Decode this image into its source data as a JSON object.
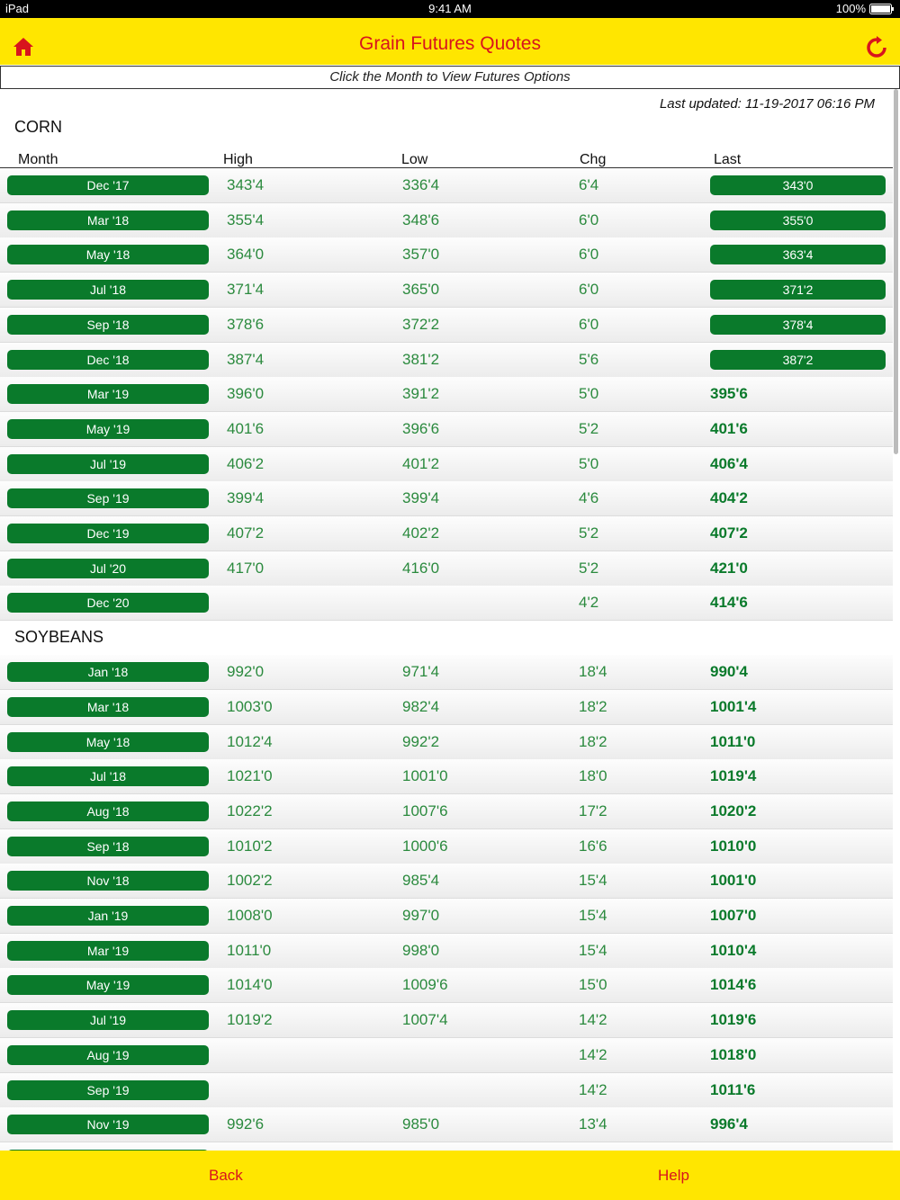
{
  "status": {
    "device": "iPad",
    "time": "9:41 AM",
    "battery": "100%"
  },
  "header": {
    "title": "Grain Futures Quotes"
  },
  "subheader": "Click the Month to View Futures Options",
  "last_updated": "Last updated: 11-19-2017 06:16 PM",
  "columns": [
    "Month",
    "High",
    "Low",
    "Chg",
    "Last"
  ],
  "sections": [
    {
      "name": "CORN",
      "rows": [
        {
          "month": "Dec '17",
          "high": "343'4",
          "low": "336'4",
          "chg": "6'4",
          "last": "343'0",
          "last_button": true
        },
        {
          "month": "Mar '18",
          "high": "355'4",
          "low": "348'6",
          "chg": "6'0",
          "last": "355'0",
          "last_button": true
        },
        {
          "month": "May '18",
          "high": "364'0",
          "low": "357'0",
          "chg": "6'0",
          "last": "363'4",
          "last_button": true
        },
        {
          "month": "Jul '18",
          "high": "371'4",
          "low": "365'0",
          "chg": "6'0",
          "last": "371'2",
          "last_button": true
        },
        {
          "month": "Sep '18",
          "high": "378'6",
          "low": "372'2",
          "chg": "6'0",
          "last": "378'4",
          "last_button": true
        },
        {
          "month": "Dec '18",
          "high": "387'4",
          "low": "381'2",
          "chg": "5'6",
          "last": "387'2",
          "last_button": true
        },
        {
          "month": "Mar '19",
          "high": "396'0",
          "low": "391'2",
          "chg": "5'0",
          "last": "395'6",
          "last_button": false
        },
        {
          "month": "May '19",
          "high": "401'6",
          "low": "396'6",
          "chg": "5'2",
          "last": "401'6",
          "last_button": false
        },
        {
          "month": "Jul '19",
          "high": "406'2",
          "low": "401'2",
          "chg": "5'0",
          "last": "406'4",
          "last_button": false
        },
        {
          "month": "Sep '19",
          "high": "399'4",
          "low": "399'4",
          "chg": "4'6",
          "last": "404'2",
          "last_button": false
        },
        {
          "month": "Dec '19",
          "high": "407'2",
          "low": "402'2",
          "chg": "5'2",
          "last": "407'2",
          "last_button": false
        },
        {
          "month": "Jul '20",
          "high": "417'0",
          "low": "416'0",
          "chg": "5'2",
          "last": "421'0",
          "last_button": false
        },
        {
          "month": "Dec '20",
          "high": null,
          "low": null,
          "chg": "4'2",
          "last": "414'6",
          "last_button": false
        }
      ]
    },
    {
      "name": "SOYBEANS",
      "rows": [
        {
          "month": "Jan '18",
          "high": "992'0",
          "low": "971'4",
          "chg": "18'4",
          "last": "990'4",
          "last_button": false
        },
        {
          "month": "Mar '18",
          "high": "1003'0",
          "low": "982'4",
          "chg": "18'2",
          "last": "1001'4",
          "last_button": false
        },
        {
          "month": "May '18",
          "high": "1012'4",
          "low": "992'2",
          "chg": "18'2",
          "last": "1011'0",
          "last_button": false
        },
        {
          "month": "Jul '18",
          "high": "1021'0",
          "low": "1001'0",
          "chg": "18'0",
          "last": "1019'4",
          "last_button": false
        },
        {
          "month": "Aug '18",
          "high": "1022'2",
          "low": "1007'6",
          "chg": "17'2",
          "last": "1020'2",
          "last_button": false
        },
        {
          "month": "Sep '18",
          "high": "1010'2",
          "low": "1000'6",
          "chg": "16'6",
          "last": "1010'0",
          "last_button": false
        },
        {
          "month": "Nov '18",
          "high": "1002'2",
          "low": "985'4",
          "chg": "15'4",
          "last": "1001'0",
          "last_button": false
        },
        {
          "month": "Jan '19",
          "high": "1008'0",
          "low": "997'0",
          "chg": "15'4",
          "last": "1007'0",
          "last_button": false
        },
        {
          "month": "Mar '19",
          "high": "1011'0",
          "low": "998'0",
          "chg": "15'4",
          "last": "1010'4",
          "last_button": false
        },
        {
          "month": "May '19",
          "high": "1014'0",
          "low": "1009'6",
          "chg": "15'0",
          "last": "1014'6",
          "last_button": false
        },
        {
          "month": "Jul '19",
          "high": "1019'2",
          "low": "1007'4",
          "chg": "14'2",
          "last": "1019'6",
          "last_button": false
        },
        {
          "month": "Aug '19",
          "high": null,
          "low": null,
          "chg": "14'2",
          "last": "1018'0",
          "last_button": false
        },
        {
          "month": "Sep '19",
          "high": null,
          "low": null,
          "chg": "14'2",
          "last": "1011'6",
          "last_button": false
        },
        {
          "month": "Nov '19",
          "high": "992'6",
          "low": "985'0",
          "chg": "13'4",
          "last": "996'4",
          "last_button": false
        }
      ]
    }
  ],
  "footer": {
    "back": "Back",
    "help": "Help"
  }
}
